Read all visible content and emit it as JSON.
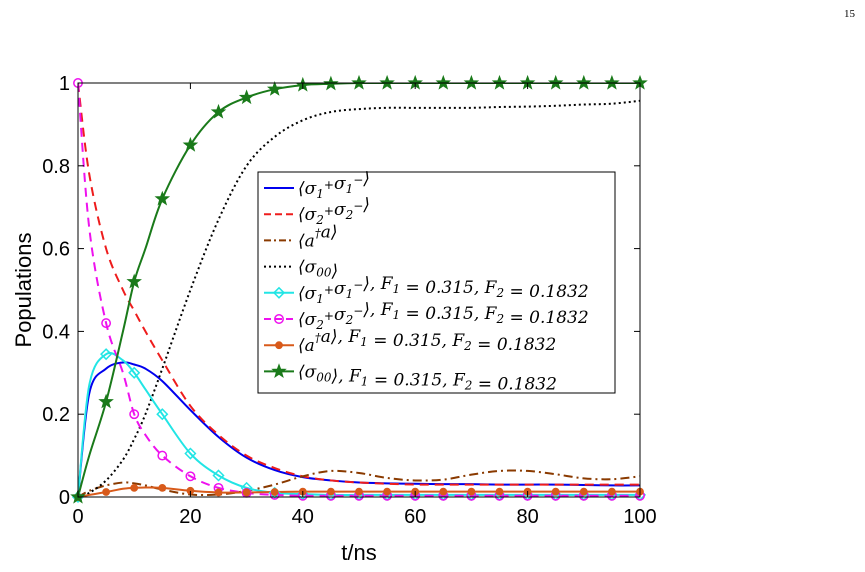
{
  "page_number": "15",
  "chart_data": {
    "type": "line",
    "xlabel": "t/ns",
    "ylabel": "Populations",
    "xlim": [
      0,
      100
    ],
    "ylim": [
      0,
      1
    ],
    "xticks": [
      0,
      20,
      40,
      60,
      80,
      100
    ],
    "yticks": [
      0,
      0.2,
      0.4,
      0.6,
      0.8,
      1
    ],
    "ytick_labels": [
      "0",
      "0.2",
      "0.4",
      "0.6",
      "0.8",
      "1"
    ],
    "grid": false,
    "legend_position": "center-right",
    "x": [
      0,
      2,
      5,
      8,
      10,
      12,
      15,
      20,
      25,
      30,
      35,
      40,
      45,
      50,
      55,
      60,
      65,
      70,
      75,
      80,
      85,
      90,
      95,
      100
    ],
    "series": [
      {
        "name": "⟨σ1+σ1−⟩",
        "color": "#0000ee",
        "dash": "solid",
        "marker": "none",
        "values": [
          0,
          0.25,
          0.31,
          0.325,
          0.32,
          0.31,
          0.28,
          0.21,
          0.145,
          0.095,
          0.065,
          0.048,
          0.04,
          0.035,
          0.033,
          0.032,
          0.031,
          0.031,
          0.03,
          0.03,
          0.03,
          0.029,
          0.028,
          0.028
        ]
      },
      {
        "name": "⟨σ2+σ2−⟩",
        "color": "#ee1c1c",
        "dash": "dashed",
        "marker": "none",
        "values": [
          1,
          0.78,
          0.6,
          0.5,
          0.45,
          0.4,
          0.33,
          0.22,
          0.15,
          0.1,
          0.07,
          0.05,
          0.04,
          0.035,
          0.032,
          0.03,
          0.03,
          0.03,
          0.03,
          0.03,
          0.03,
          0.03,
          0.03,
          0.03
        ]
      },
      {
        "name": "⟨a†a⟩",
        "color": "#8a3a00",
        "dash": "dashdot",
        "marker": "none",
        "values": [
          0,
          0.015,
          0.028,
          0.035,
          0.033,
          0.028,
          0.018,
          0.006,
          0.006,
          0.015,
          0.03,
          0.05,
          0.063,
          0.058,
          0.046,
          0.04,
          0.042,
          0.054,
          0.063,
          0.063,
          0.055,
          0.045,
          0.043,
          0.05
        ]
      },
      {
        "name": "⟨σ00⟩",
        "color": "#000000",
        "dash": "dotted",
        "marker": "none",
        "values": [
          0,
          0.01,
          0.04,
          0.09,
          0.14,
          0.2,
          0.31,
          0.5,
          0.67,
          0.8,
          0.87,
          0.91,
          0.93,
          0.937,
          0.94,
          0.94,
          0.94,
          0.94,
          0.942,
          0.943,
          0.945,
          0.948,
          0.95,
          0.957
        ]
      },
      {
        "name": "⟨σ1+σ1−⟩, F1 = 0.315, F2 = 0.1832",
        "color": "#22e5e5",
        "dash": "solid",
        "marker": "diamond",
        "values": [
          0,
          0.27,
          0.345,
          0.33,
          0.3,
          0.26,
          0.2,
          0.105,
          0.052,
          0.022,
          0.01,
          0.007,
          0.005,
          0.005,
          0.005,
          0.005,
          0.005,
          0.005,
          0.005,
          0.005,
          0.005,
          0.005,
          0.005,
          0.005
        ]
      },
      {
        "name": "⟨σ2+σ2−⟩, F1 = 0.315, F2 = 0.1832",
        "color": "#ee11ee",
        "dash": "dashed",
        "marker": "circle",
        "values": [
          1,
          0.65,
          0.42,
          0.3,
          0.2,
          0.15,
          0.1,
          0.05,
          0.022,
          0.01,
          0.005,
          0.003,
          0.003,
          0.003,
          0.003,
          0.003,
          0.003,
          0.003,
          0.003,
          0.003,
          0.003,
          0.003,
          0.003,
          0.003
        ]
      },
      {
        "name": "⟨a†a⟩, F1 = 0.315, F2 = 0.1832",
        "color": "#d85a1a",
        "dash": "solid",
        "marker": "dot",
        "values": [
          0,
          0.005,
          0.012,
          0.02,
          0.022,
          0.023,
          0.022,
          0.015,
          0.011,
          0.011,
          0.012,
          0.013,
          0.013,
          0.013,
          0.013,
          0.013,
          0.013,
          0.013,
          0.013,
          0.013,
          0.013,
          0.013,
          0.013,
          0.013
        ]
      },
      {
        "name": "⟨σ00⟩, F1 = 0.315, F2 = 0.1832",
        "color": "#1a7a1a",
        "dash": "solid",
        "marker": "star",
        "values": [
          0,
          0.1,
          0.23,
          0.4,
          0.52,
          0.6,
          0.72,
          0.85,
          0.93,
          0.965,
          0.985,
          0.995,
          0.998,
          1,
          1,
          1,
          1,
          1,
          1,
          1,
          1,
          1,
          1,
          1
        ]
      }
    ],
    "legend": [
      {
        "math": "⟨σ1+σ1−⟩",
        "parts": [
          [
            "⟨σ",
            "n"
          ],
          [
            "1",
            "sub"
          ],
          [
            "+",
            "sup"
          ],
          [
            "σ",
            "n"
          ],
          [
            "1",
            "sub"
          ],
          [
            "−",
            "sup"
          ],
          [
            "⟩",
            "n"
          ]
        ]
      },
      {
        "math": "⟨σ2+σ2−⟩",
        "parts": [
          [
            "⟨σ",
            "n"
          ],
          [
            "2",
            "sub"
          ],
          [
            "+",
            "sup"
          ],
          [
            "σ",
            "n"
          ],
          [
            "2",
            "sub"
          ],
          [
            "−",
            "sup"
          ],
          [
            "⟩",
            "n"
          ]
        ]
      },
      {
        "math": "⟨a†a⟩",
        "parts": [
          [
            "⟨a",
            "n"
          ],
          [
            "†",
            "sup"
          ],
          [
            "a⟩",
            "n"
          ]
        ]
      },
      {
        "math": "⟨σ00⟩",
        "parts": [
          [
            "⟨σ",
            "n"
          ],
          [
            "00",
            "sub"
          ],
          [
            "⟩",
            "n"
          ]
        ]
      },
      {
        "math": "⟨σ1+σ1−⟩, F1 = 0.315, F2 = 0.1832",
        "parts": [
          [
            "⟨σ",
            "n"
          ],
          [
            "1",
            "sub"
          ],
          [
            "+",
            "sup"
          ],
          [
            "σ",
            "n"
          ],
          [
            "1",
            "sub"
          ],
          [
            "−",
            "sup"
          ],
          [
            "⟩, F",
            "n"
          ],
          [
            "1",
            "sub"
          ],
          [
            " = 0.315, F",
            "n"
          ],
          [
            "2",
            "sub"
          ],
          [
            " = 0.1832",
            "n"
          ]
        ]
      },
      {
        "math": "⟨σ2+σ2−⟩, F1 = 0.315, F2 = 0.1832",
        "parts": [
          [
            "⟨σ",
            "n"
          ],
          [
            "2",
            "sub"
          ],
          [
            "+",
            "sup"
          ],
          [
            "σ",
            "n"
          ],
          [
            "2",
            "sub"
          ],
          [
            "−",
            "sup"
          ],
          [
            "⟩, F",
            "n"
          ],
          [
            "1",
            "sub"
          ],
          [
            " = 0.315, F",
            "n"
          ],
          [
            "2",
            "sub"
          ],
          [
            " = 0.1832",
            "n"
          ]
        ]
      },
      {
        "math": "⟨a†a⟩, F1 = 0.315, F2 = 0.1832",
        "parts": [
          [
            "⟨a",
            "n"
          ],
          [
            "†",
            "sup"
          ],
          [
            "a⟩, F",
            "n"
          ],
          [
            "1",
            "sub"
          ],
          [
            " = 0.315, F",
            "n"
          ],
          [
            "2",
            "sub"
          ],
          [
            " = 0.1832",
            "n"
          ]
        ]
      },
      {
        "math": "⟨σ00⟩, F1 = 0.315, F2 = 0.1832",
        "parts": [
          [
            "⟨σ",
            "n"
          ],
          [
            "00",
            "sub"
          ],
          [
            "⟩, F",
            "n"
          ],
          [
            "1",
            "sub"
          ],
          [
            " = 0.315, F",
            "n"
          ],
          [
            "2",
            "sub"
          ],
          [
            " = 0.1832",
            "n"
          ]
        ]
      }
    ]
  }
}
